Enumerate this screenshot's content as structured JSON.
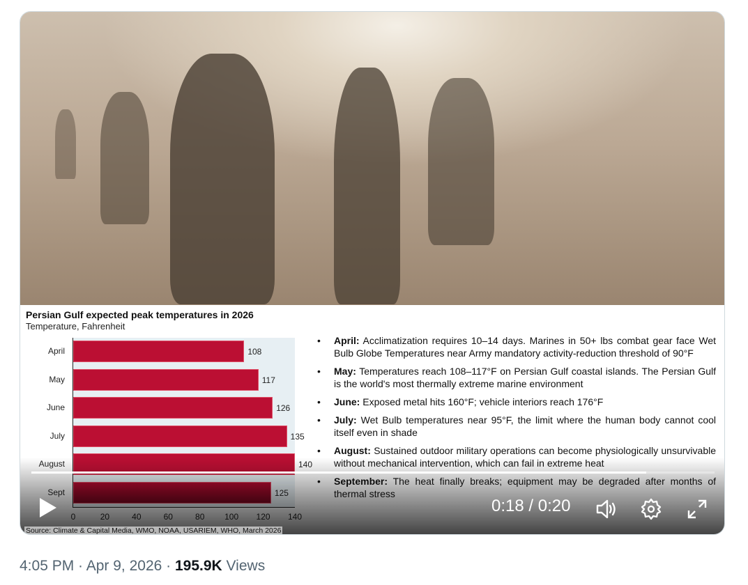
{
  "chart_data": {
    "type": "bar",
    "orientation": "horizontal",
    "title": "Persian Gulf expected peak temperatures in 2026",
    "subtitle": "Temperature, Fahrenheit",
    "categories": [
      "April",
      "May",
      "June",
      "July",
      "August",
      "Sept"
    ],
    "values": [
      108,
      117,
      126,
      135,
      140,
      125
    ],
    "xlim": [
      0,
      140
    ],
    "xticks": [
      "0",
      "20",
      "40",
      "60",
      "80",
      "100",
      "120",
      "140"
    ],
    "bar_color": "#bb0f33",
    "source": "Source: Climate & Capital Media, WMO, NOAA, USARIEM, WHO, March 2026"
  },
  "bullets": [
    {
      "label": "April:",
      "text": " Acclimatization requires 10–14 days. Marines in 50+ lbs combat gear face Wet Bulb Globe Temperatures near Army mandatory activity-reduction threshold of 90°F"
    },
    {
      "label": "May:",
      "text": " Temperatures reach 108–117°F on Persian Gulf coastal islands. The Persian Gulf is the world's most thermally extreme marine environment"
    },
    {
      "label": "June:",
      "text": " Exposed metal hits 160°F; vehicle interiors reach 176°F"
    },
    {
      "label": "July:",
      "text": " Wet Bulb temperatures near 95°F, the limit where the human body cannot cool itself even in shade"
    },
    {
      "label": "August:",
      "text": " Sustained outdoor military operations can become physiologically unsurvivable without mechanical intervention, which can fail in extreme heat"
    },
    {
      "label": "September:",
      "text": " The heat finally breaks; equipment may be degraded after months of thermal stress"
    }
  ],
  "player": {
    "time": "0:18 / 0:20",
    "progress_fraction": 0.9
  },
  "footer": {
    "time": "4:05 PM",
    "sep1": " · ",
    "date": "Apr 9, 2026",
    "sep2": " · ",
    "views": "195.9K",
    "views_label": " Views"
  }
}
